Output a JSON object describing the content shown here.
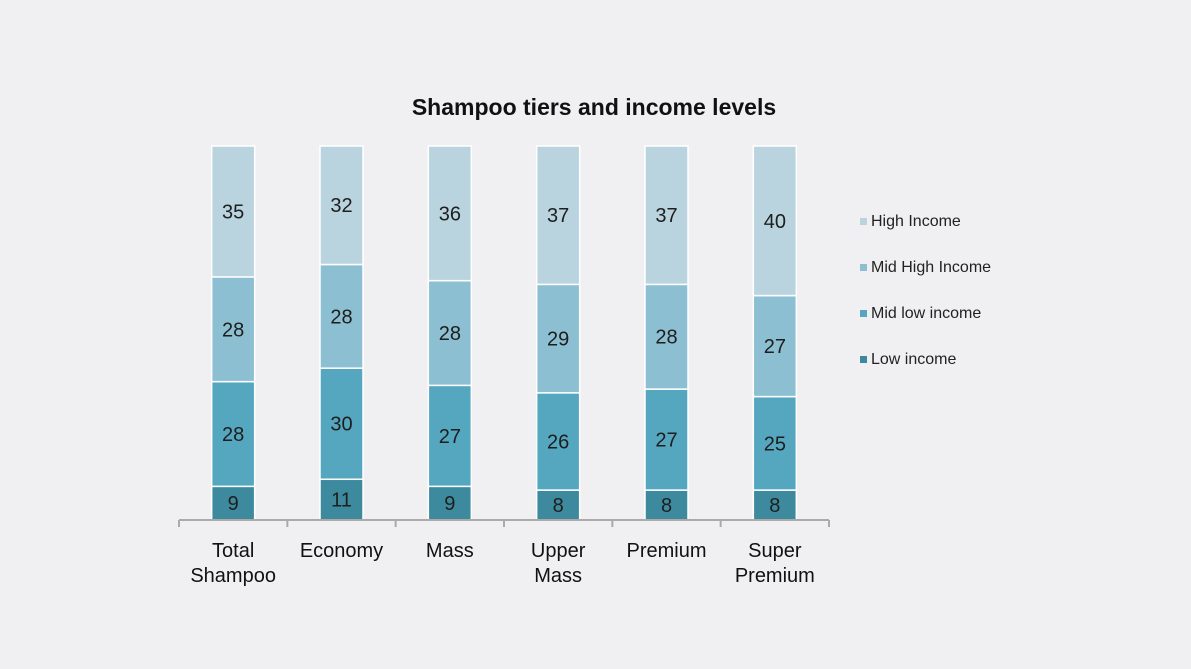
{
  "chart_data": {
    "type": "bar",
    "stacked": true,
    "title": "Shampoo tiers and income levels",
    "categories": [
      [
        "Total",
        "Shampoo"
      ],
      [
        "Economy"
      ],
      [
        "Mass"
      ],
      [
        "Upper",
        "Mass"
      ],
      [
        "Premium"
      ],
      [
        "Super",
        "Premium"
      ]
    ],
    "series": [
      {
        "name": "Low income",
        "color": "#3d8a9e",
        "values": [
          9,
          11,
          9,
          8,
          8,
          8
        ]
      },
      {
        "name": "Mid low income",
        "color": "#55a7bf",
        "values": [
          28,
          30,
          27,
          26,
          27,
          25
        ]
      },
      {
        "name": "Mid High Income",
        "color": "#8bbfd1",
        "values": [
          28,
          28,
          28,
          29,
          28,
          27
        ]
      },
      {
        "name": "High Income",
        "color": "#b9d4df",
        "values": [
          35,
          32,
          36,
          37,
          37,
          40
        ]
      }
    ],
    "legend_order": [
      "High Income",
      "Mid High Income",
      "Mid low income",
      "Low income"
    ],
    "legend_position": "right",
    "grid": false,
    "axis_color": "#aaaaaa"
  }
}
